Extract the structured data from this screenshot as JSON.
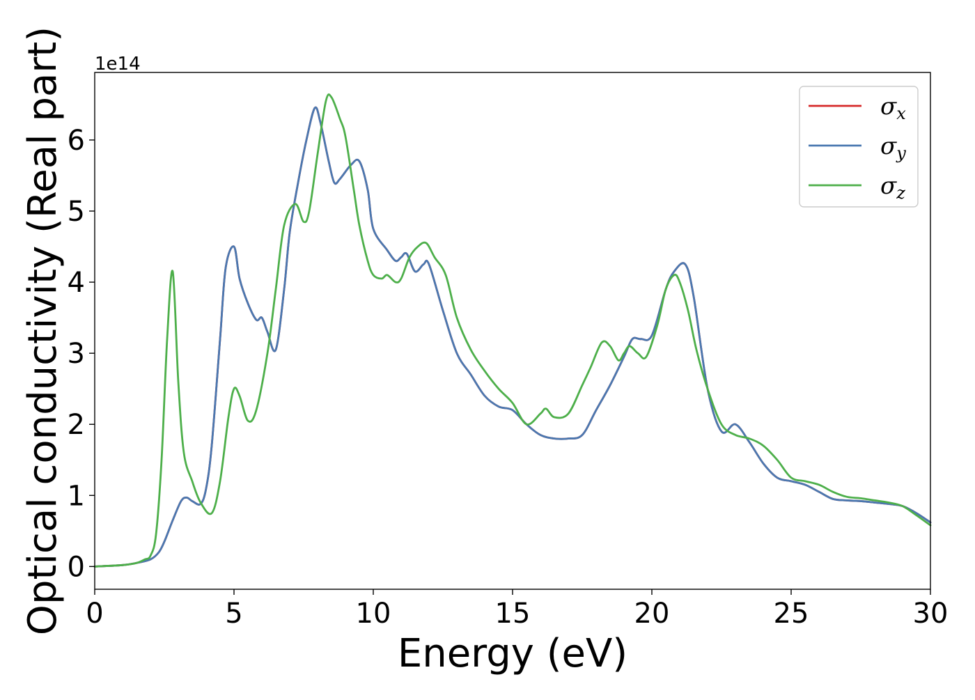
{
  "chart_data": {
    "type": "line",
    "xlabel": "Energy (eV)",
    "ylabel": "Optical conductivity (Real part)",
    "y_scale_label": "1e14",
    "y_scale": 100000000000000.0,
    "xlim": [
      0,
      30
    ],
    "ylim": [
      -0.32,
      6.95
    ],
    "xticks": [
      0,
      5,
      10,
      15,
      20,
      25,
      30
    ],
    "yticks": [
      0,
      1,
      2,
      3,
      4,
      5,
      6
    ],
    "grid": false,
    "legend_position": "top-right",
    "series": [
      {
        "name_base": "σ",
        "name_sub": "x",
        "color": "#d62728",
        "x": [
          0,
          1,
          1.5,
          2,
          2.3,
          2.5,
          2.8,
          3.1,
          3.3,
          3.5,
          3.8,
          4,
          4.2,
          4.5,
          4.7,
          5,
          5.2,
          5.5,
          5.8,
          6,
          6.2,
          6.5,
          6.8,
          7,
          7.3,
          7.6,
          7.9,
          8.1,
          8.4,
          8.6,
          8.8,
          9.2,
          9.5,
          9.8,
          10,
          10.5,
          10.8,
          11,
          11.2,
          11.5,
          11.8,
          12,
          12.5,
          13,
          13.5,
          14,
          14.5,
          15,
          15.5,
          16,
          16.5,
          17,
          17.5,
          18,
          18.5,
          19,
          19.3,
          19.6,
          20,
          20.5,
          20.8,
          21.2,
          21.5,
          22,
          22.5,
          23,
          23.5,
          24,
          24.5,
          25,
          25.5,
          26,
          26.5,
          27,
          27.5,
          28,
          28.5,
          29,
          29.5,
          30
        ],
        "y": [
          0,
          0.02,
          0.05,
          0.1,
          0.2,
          0.35,
          0.65,
          0.92,
          0.97,
          0.92,
          0.88,
          1.1,
          1.7,
          3.2,
          4.2,
          4.5,
          4.05,
          3.7,
          3.47,
          3.5,
          3.3,
          3.05,
          3.9,
          4.7,
          5.4,
          6.0,
          6.45,
          6.25,
          5.7,
          5.4,
          5.45,
          5.65,
          5.7,
          5.3,
          4.75,
          4.45,
          4.3,
          4.35,
          4.4,
          4.15,
          4.25,
          4.25,
          3.6,
          3.0,
          2.7,
          2.4,
          2.25,
          2.2,
          2.0,
          1.85,
          1.8,
          1.8,
          1.85,
          2.2,
          2.55,
          2.95,
          3.2,
          3.2,
          3.25,
          3.9,
          4.15,
          4.25,
          3.8,
          2.5,
          1.9,
          2.0,
          1.75,
          1.45,
          1.25,
          1.2,
          1.15,
          1.05,
          0.95,
          0.93,
          0.92,
          0.9,
          0.88,
          0.85,
          0.75,
          0.62
        ]
      },
      {
        "name_base": "σ",
        "name_sub": "y",
        "color": "#4a78b0",
        "x": [
          0,
          1,
          1.5,
          2,
          2.3,
          2.5,
          2.8,
          3.1,
          3.3,
          3.5,
          3.8,
          4,
          4.2,
          4.5,
          4.7,
          5,
          5.2,
          5.5,
          5.8,
          6,
          6.2,
          6.5,
          6.8,
          7,
          7.3,
          7.6,
          7.9,
          8.1,
          8.4,
          8.6,
          8.8,
          9.2,
          9.5,
          9.8,
          10,
          10.5,
          10.8,
          11,
          11.2,
          11.5,
          11.8,
          12,
          12.5,
          13,
          13.5,
          14,
          14.5,
          15,
          15.5,
          16,
          16.5,
          17,
          17.5,
          18,
          18.5,
          19,
          19.3,
          19.6,
          20,
          20.5,
          20.8,
          21.2,
          21.5,
          22,
          22.5,
          23,
          23.5,
          24,
          24.5,
          25,
          25.5,
          26,
          26.5,
          27,
          27.5,
          28,
          28.5,
          29,
          29.5,
          30
        ],
        "y": [
          0,
          0.02,
          0.05,
          0.1,
          0.2,
          0.35,
          0.65,
          0.92,
          0.97,
          0.92,
          0.88,
          1.1,
          1.7,
          3.2,
          4.2,
          4.5,
          4.05,
          3.7,
          3.47,
          3.5,
          3.3,
          3.05,
          3.9,
          4.7,
          5.4,
          6.0,
          6.45,
          6.25,
          5.7,
          5.4,
          5.45,
          5.65,
          5.7,
          5.3,
          4.75,
          4.45,
          4.3,
          4.35,
          4.4,
          4.15,
          4.25,
          4.25,
          3.6,
          3.0,
          2.7,
          2.4,
          2.25,
          2.2,
          2.0,
          1.85,
          1.8,
          1.8,
          1.85,
          2.2,
          2.55,
          2.95,
          3.2,
          3.2,
          3.25,
          3.9,
          4.15,
          4.25,
          3.8,
          2.5,
          1.9,
          2.0,
          1.75,
          1.45,
          1.25,
          1.2,
          1.15,
          1.05,
          0.95,
          0.93,
          0.92,
          0.9,
          0.88,
          0.85,
          0.75,
          0.62
        ]
      },
      {
        "name_base": "σ",
        "name_sub": "z",
        "color": "#4daf4a",
        "x": [
          0,
          1,
          1.5,
          1.8,
          2,
          2.2,
          2.4,
          2.6,
          2.8,
          3,
          3.2,
          3.5,
          3.8,
          4.2,
          4.5,
          4.8,
          5,
          5.2,
          5.5,
          5.8,
          6.2,
          6.5,
          6.8,
          7.2,
          7.5,
          7.7,
          8,
          8.3,
          8.5,
          8.8,
          9,
          9.3,
          9.5,
          9.8,
          10,
          10.3,
          10.5,
          10.8,
          11,
          11.3,
          11.6,
          11.9,
          12.2,
          12.6,
          13,
          13.5,
          14,
          14.5,
          15,
          15.5,
          16,
          16.2,
          16.5,
          17,
          17.5,
          17.8,
          18.2,
          18.5,
          18.8,
          19,
          19.2,
          19.5,
          19.8,
          20.2,
          20.5,
          20.8,
          21,
          21.3,
          21.6,
          22,
          22.5,
          23,
          23.5,
          24,
          24.5,
          25,
          25.5,
          26,
          26.5,
          27,
          27.5,
          28,
          28.5,
          29,
          29.5,
          30
        ],
        "y": [
          0,
          0.02,
          0.05,
          0.1,
          0.15,
          0.45,
          1.5,
          3.2,
          4.15,
          2.6,
          1.6,
          1.2,
          0.9,
          0.75,
          1.2,
          2.1,
          2.5,
          2.4,
          2.05,
          2.2,
          3.0,
          3.9,
          4.8,
          5.1,
          4.85,
          5.0,
          5.8,
          6.55,
          6.6,
          6.3,
          6.05,
          5.3,
          4.8,
          4.3,
          4.1,
          4.05,
          4.1,
          4.0,
          4.05,
          4.35,
          4.5,
          4.55,
          4.35,
          4.1,
          3.5,
          3.05,
          2.75,
          2.5,
          2.3,
          2.0,
          2.15,
          2.22,
          2.1,
          2.15,
          2.55,
          2.8,
          3.15,
          3.1,
          2.9,
          3.0,
          3.1,
          3.0,
          2.95,
          3.4,
          3.9,
          4.1,
          4.0,
          3.6,
          3.05,
          2.5,
          2.0,
          1.85,
          1.8,
          1.7,
          1.5,
          1.25,
          1.2,
          1.15,
          1.05,
          0.98,
          0.96,
          0.93,
          0.9,
          0.85,
          0.72,
          0.58
        ]
      }
    ]
  }
}
